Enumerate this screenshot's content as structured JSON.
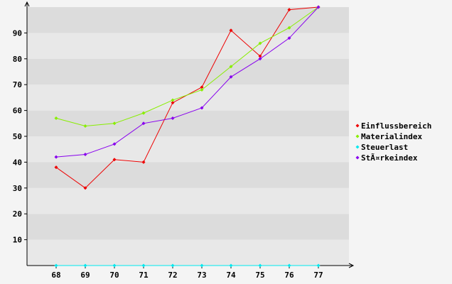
{
  "chart_data": {
    "type": "line",
    "title": "",
    "xlabel": "",
    "ylabel": "",
    "categories": [
      "68",
      "69",
      "70",
      "71",
      "72",
      "73",
      "74",
      "75",
      "76",
      "77"
    ],
    "ylim": [
      0,
      100
    ],
    "yticks": [
      10,
      20,
      30,
      40,
      50,
      60,
      70,
      80,
      90
    ],
    "grid": "horizontal alternating bands",
    "legend_position": "right",
    "series": [
      {
        "name": "Einflussbereich",
        "color": "#ee0000",
        "values": [
          38,
          30,
          41,
          40,
          63,
          69,
          91,
          81,
          99,
          100
        ]
      },
      {
        "name": "Materialindex",
        "color": "#88ee00",
        "values": [
          57,
          54,
          55,
          59,
          64,
          68,
          77,
          86,
          92,
          100
        ]
      },
      {
        "name": "Steuerlast",
        "color": "#00e8ee",
        "values": [
          0,
          0,
          0,
          0,
          0,
          0,
          0,
          0,
          0,
          0
        ]
      },
      {
        "name": "StÃ¤rkeindex",
        "color": "#8800ee",
        "values": [
          42,
          43,
          47,
          55,
          57,
          61,
          73,
          80,
          88,
          100
        ]
      }
    ]
  }
}
